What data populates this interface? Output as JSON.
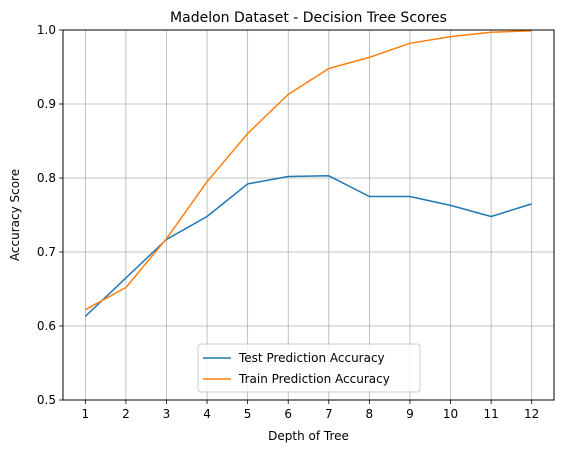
{
  "chart_data": {
    "type": "line",
    "title": "Madelon Dataset - Decision Tree Scores",
    "xlabel": "Depth of Tree",
    "ylabel": "Accuracy Score",
    "x": [
      1,
      2,
      3,
      4,
      5,
      6,
      7,
      8,
      9,
      10,
      11,
      12
    ],
    "ylim": [
      0.5,
      1.0
    ],
    "yticks": [
      "0.5",
      "0.6",
      "0.7",
      "0.8",
      "0.9",
      "1.0"
    ],
    "grid": true,
    "legend_position": "bottom-center",
    "series": [
      {
        "name": "Test Prediction Accuracy",
        "color": "#1f77b4",
        "values": [
          0.613,
          0.665,
          0.717,
          0.748,
          0.792,
          0.802,
          0.803,
          0.775,
          0.775,
          0.763,
          0.748,
          0.765
        ]
      },
      {
        "name": "Train Prediction Accuracy",
        "color": "#ff7f0e",
        "values": [
          0.622,
          0.652,
          0.718,
          0.795,
          0.86,
          0.913,
          0.948,
          0.963,
          0.982,
          0.991,
          0.997,
          0.999
        ]
      }
    ]
  }
}
